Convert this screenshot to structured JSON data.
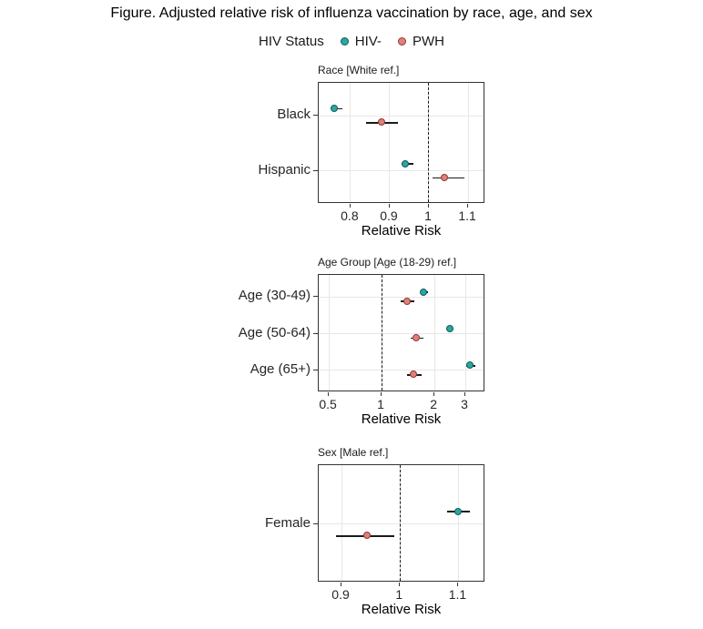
{
  "figure_title": "Figure. Adjusted relative risk of influenza vaccination by race, age, and sex",
  "legend": {
    "title": "HIV Status",
    "position": "top-center",
    "series": [
      {
        "name": "HIV-",
        "fill": "#2BA6A2",
        "stroke": "#0F5E5B"
      },
      {
        "name": "PWH",
        "fill": "#E08078",
        "stroke": "#8B3B34"
      }
    ]
  },
  "colors": {
    "background": "#FFFFFF",
    "panel_border": "#333333",
    "gridline": "#E7E7E7",
    "reference_line": "#1A1A1A",
    "text": "#1A1A1A"
  },
  "chart_data": [
    {
      "type": "scatter",
      "panel_title": "Race [White ref.]",
      "xlabel": "Relative Risk",
      "x_scale": "linear",
      "xlim": [
        0.719,
        1.144
      ],
      "ticks": [
        0.8,
        0.9,
        1.0,
        1.1
      ],
      "tick_labels": [
        "0.8",
        "0.9",
        "1",
        "1.1"
      ],
      "reference_line_x": 1,
      "grid": true,
      "categories": [
        "Black",
        "Hispanic"
      ],
      "series": [
        {
          "name": "HIV-",
          "points": [
            {
              "est": 0.76,
              "lo": 0.75,
              "hi": 0.78
            },
            {
              "est": 0.94,
              "lo": 0.93,
              "hi": 0.96
            }
          ]
        },
        {
          "name": "PWH",
          "points": [
            {
              "est": 0.88,
              "lo": 0.84,
              "hi": 0.92
            },
            {
              "est": 1.04,
              "lo": 1.01,
              "hi": 1.09
            }
          ]
        }
      ]
    },
    {
      "type": "scatter",
      "panel_title": "Age Group [Age (18-29) ref.]",
      "xlabel": "Relative Risk",
      "x_scale": "log",
      "xlim": [
        0.438,
        3.9
      ],
      "ticks": [
        0.5,
        1,
        2,
        3
      ],
      "tick_labels": [
        "0.5",
        "1",
        "2",
        "3"
      ],
      "reference_line_x": 1,
      "grid": true,
      "categories": [
        "Age (30-49)",
        "Age (50-64)",
        "Age (65+)"
      ],
      "series": [
        {
          "name": "HIV-",
          "points": [
            {
              "est": 1.74,
              "lo": 1.66,
              "hi": 1.83
            },
            {
              "est": 2.45,
              "lo": 2.33,
              "hi": 2.58
            },
            {
              "est": 3.22,
              "lo": 3.04,
              "hi": 3.42
            }
          ]
        },
        {
          "name": "PWH",
          "points": [
            {
              "est": 1.4,
              "lo": 1.29,
              "hi": 1.53
            },
            {
              "est": 1.59,
              "lo": 1.46,
              "hi": 1.73
            },
            {
              "est": 1.52,
              "lo": 1.4,
              "hi": 1.69
            }
          ]
        }
      ]
    },
    {
      "type": "scatter",
      "panel_title": "Sex [Male ref.]",
      "xlabel": "Relative Risk",
      "x_scale": "linear",
      "xlim": [
        0.861,
        1.146
      ],
      "ticks": [
        0.9,
        1.0,
        1.1
      ],
      "tick_labels": [
        "0.9",
        "1",
        "1.1"
      ],
      "reference_line_x": 1,
      "grid": true,
      "categories": [
        "Female"
      ],
      "series": [
        {
          "name": "HIV-",
          "points": [
            {
              "est": 1.1,
              "lo": 1.08,
              "hi": 1.12
            }
          ]
        },
        {
          "name": "PWH",
          "points": [
            {
              "est": 0.945,
              "lo": 0.89,
              "hi": 0.99
            }
          ]
        }
      ]
    }
  ]
}
